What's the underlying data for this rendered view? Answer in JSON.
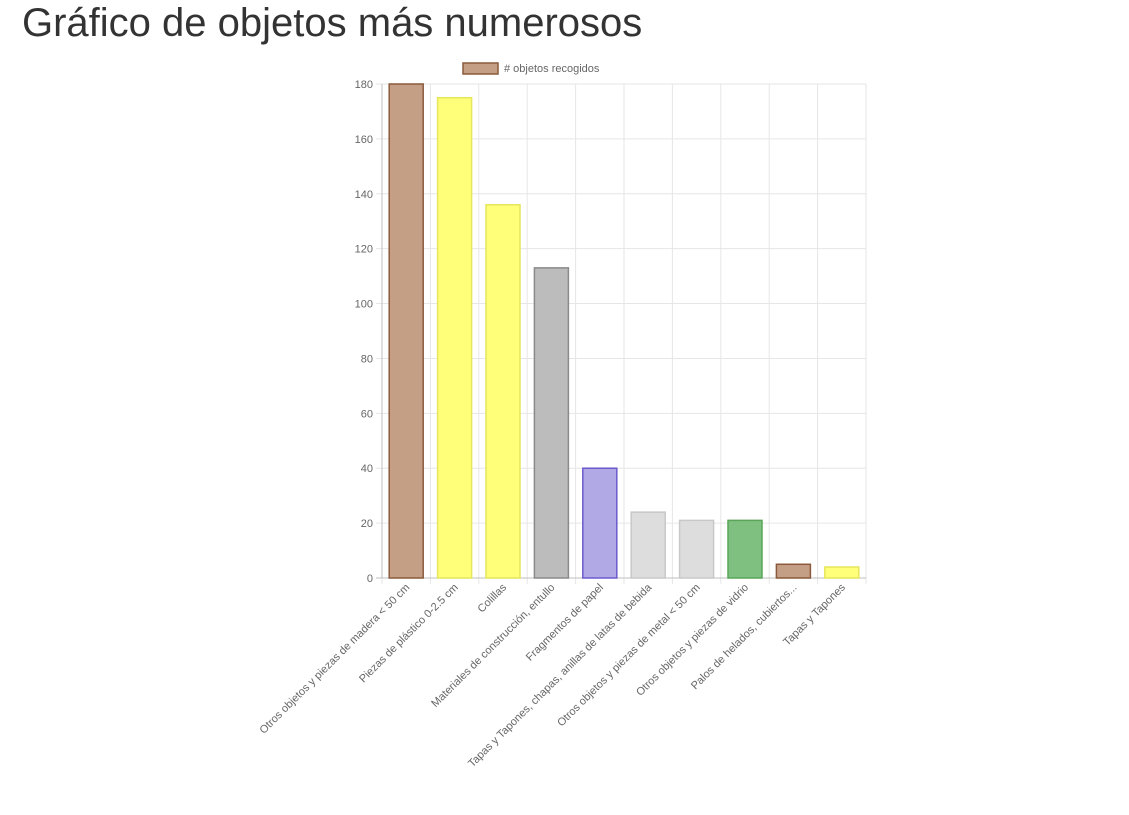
{
  "page": {
    "title": "Gráfico de objetos más numerosos"
  },
  "chart_data": {
    "type": "bar",
    "title": "",
    "xlabel": "",
    "ylabel": "",
    "legend_position": "top",
    "grid": true,
    "ylim": [
      0,
      180
    ],
    "y_ticks": [
      0,
      20,
      40,
      60,
      80,
      100,
      120,
      140,
      160,
      180
    ],
    "categories": [
      "Otros objetos y piezas de madera < 50 cm",
      "Piezas de plástico 0-2.5 cm",
      "Colillas",
      "Materiales de construcción, entullo",
      "Fragmentos de papel",
      "Tapas y Tapones, chapas, anillas de latas de bebida",
      "Otros objetos y piezas de metal < 50 cm",
      "Otros objetos y piezas de vidrio",
      "Palos de helados, cubiertos...",
      "Tapas y Tapones"
    ],
    "series": [
      {
        "name": "# objetos recogidos",
        "values": [
          180,
          175,
          136,
          113,
          40,
          24,
          21,
          21,
          5,
          4
        ],
        "fill_colors": [
          "#c49f86",
          "#ffff7a",
          "#ffff7a",
          "#bcbcbc",
          "#b1a9e6",
          "#dddddd",
          "#dddddd",
          "#7fbf7f",
          "#c49f86",
          "#ffff7a"
        ],
        "border_colors": [
          "#8b5a3c",
          "#e6e65c",
          "#e6e65c",
          "#8a8a8a",
          "#6a5acd",
          "#c8c8c8",
          "#c8c8c8",
          "#5aa55a",
          "#8b5a3c",
          "#e6e65c"
        ],
        "legend_fill": "#c49f86",
        "legend_border": "#8b5a3c"
      }
    ]
  }
}
